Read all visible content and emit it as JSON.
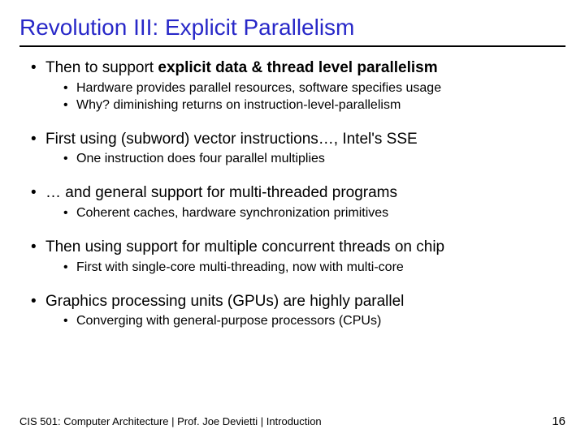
{
  "title": "Revolution III: Explicit Parallelism",
  "bullets": [
    {
      "pre": "Then to support ",
      "bold": "explicit data & thread level parallelism",
      "post": "",
      "sub": [
        "Hardware provides parallel resources, software specifies usage",
        "Why? diminishing returns on instruction-level-parallelism"
      ]
    },
    {
      "pre": "First using (subword) vector instructions…, Intel's SSE",
      "bold": "",
      "post": "",
      "sub": [
        "One instruction does four parallel multiplies"
      ]
    },
    {
      "pre": "… and general support for multi-threaded programs",
      "bold": "",
      "post": "",
      "sub": [
        "Coherent caches, hardware synchronization primitives"
      ]
    },
    {
      "pre": "Then using support for multiple concurrent threads on chip",
      "bold": "",
      "post": "",
      "sub": [
        "First with single-core multi-threading, now with multi-core"
      ]
    },
    {
      "pre": "Graphics processing units (GPUs) are highly parallel",
      "bold": "",
      "post": "",
      "sub": [
        "Converging with general-purpose processors (CPUs)"
      ]
    }
  ],
  "footer": "CIS 501: Computer Architecture  |  Prof. Joe Devietti  |  Introduction",
  "pagenum": "16"
}
